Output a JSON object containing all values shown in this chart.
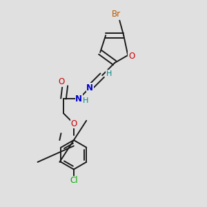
{
  "background_color": "#e0e0e0",
  "bond_color": "#1a1a1a",
  "bond_width": 1.4,
  "figsize": [
    3.0,
    3.0
  ],
  "dpi": 100,
  "colors": {
    "Br": "#b35900",
    "O": "#cc0000",
    "N": "#0000cc",
    "Cl": "#00aa00",
    "H": "#008888",
    "C": "#1a1a1a"
  }
}
